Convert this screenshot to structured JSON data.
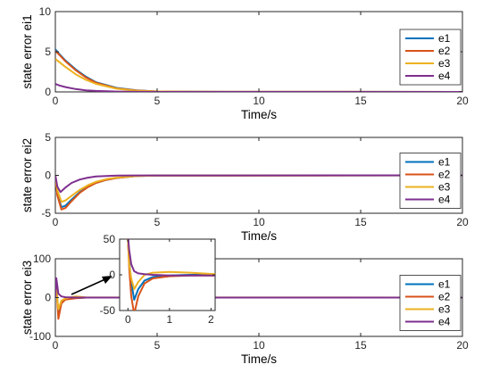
{
  "chart_data": [
    {
      "type": "line",
      "ylabel": "state error ei1",
      "xlabel": "Time/s",
      "xlim": [
        0,
        20
      ],
      "ylim": [
        0,
        10
      ],
      "xticks": [
        0,
        5,
        10,
        15,
        20
      ],
      "yticks": [
        0,
        5,
        10
      ],
      "grid": false,
      "legend_position": "right",
      "series": [
        {
          "name": "e1",
          "color": "#0072BD",
          "x": [
            0,
            0.2,
            0.5,
            1,
            1.5,
            2,
            3,
            4,
            5,
            6,
            20
          ],
          "y": [
            5.3,
            4.7,
            3.9,
            2.8,
            1.9,
            1.2,
            0.5,
            0.2,
            0.06,
            0.02,
            0
          ]
        },
        {
          "name": "e2",
          "color": "#D95319",
          "x": [
            0,
            0.2,
            0.5,
            1,
            1.5,
            2,
            3,
            4,
            5,
            6,
            20
          ],
          "y": [
            5.1,
            4.6,
            3.8,
            2.7,
            1.8,
            1.15,
            0.45,
            0.18,
            0.05,
            0.02,
            0
          ]
        },
        {
          "name": "e3",
          "color": "#EDB120",
          "x": [
            0,
            0.2,
            0.5,
            1,
            1.5,
            2,
            3,
            4,
            5,
            6,
            20
          ],
          "y": [
            4.1,
            3.7,
            3.1,
            2.2,
            1.5,
            1.0,
            0.4,
            0.15,
            0.05,
            0.02,
            0
          ]
        },
        {
          "name": "e4",
          "color": "#7E2F8E",
          "x": [
            0,
            0.2,
            0.5,
            1,
            1.5,
            2,
            3,
            4,
            5,
            20
          ],
          "y": [
            1.0,
            0.8,
            0.6,
            0.35,
            0.2,
            0.12,
            0.04,
            0.01,
            0,
            0
          ]
        }
      ]
    },
    {
      "type": "line",
      "ylabel": "state error ei2",
      "xlabel": "Time/s",
      "xlim": [
        0,
        20
      ],
      "ylim": [
        -5,
        5
      ],
      "xticks": [
        0,
        5,
        10,
        15,
        20
      ],
      "yticks": [
        -5,
        0,
        5
      ],
      "grid": false,
      "legend_position": "right",
      "series": [
        {
          "name": "e1",
          "color": "#0072BD",
          "x": [
            0,
            0.1,
            0.3,
            0.5,
            0.8,
            1.2,
            1.6,
            2,
            2.5,
            3,
            4,
            5,
            20
          ],
          "y": [
            0,
            -2.5,
            -4.2,
            -4.0,
            -3.2,
            -2.2,
            -1.5,
            -1.0,
            -0.6,
            -0.35,
            -0.1,
            -0.03,
            0
          ]
        },
        {
          "name": "e2",
          "color": "#D95319",
          "x": [
            0,
            0.1,
            0.3,
            0.5,
            0.8,
            1.2,
            1.6,
            2,
            2.5,
            3,
            4,
            5,
            20
          ],
          "y": [
            0,
            -2.7,
            -4.5,
            -4.3,
            -3.4,
            -2.3,
            -1.55,
            -1.0,
            -0.6,
            -0.35,
            -0.1,
            -0.03,
            0
          ]
        },
        {
          "name": "e3",
          "color": "#EDB120",
          "x": [
            0,
            0.1,
            0.3,
            0.5,
            0.8,
            1.2,
            1.6,
            2,
            2.5,
            3,
            4,
            5,
            20
          ],
          "y": [
            0,
            -2.0,
            -3.5,
            -3.3,
            -2.7,
            -1.9,
            -1.3,
            -0.85,
            -0.5,
            -0.3,
            -0.1,
            -0.03,
            0
          ]
        },
        {
          "name": "e4",
          "color": "#7E2F8E",
          "x": [
            0,
            0.1,
            0.25,
            0.5,
            0.8,
            1.2,
            1.6,
            2,
            3,
            4,
            20
          ],
          "y": [
            0,
            -1.5,
            -2.2,
            -1.6,
            -1.0,
            -0.55,
            -0.3,
            -0.15,
            -0.04,
            -0.01,
            0
          ]
        }
      ]
    },
    {
      "type": "line",
      "ylabel": "state error ei3",
      "xlabel": "Time/s",
      "xlim": [
        0,
        20
      ],
      "ylim": [
        -100,
        100
      ],
      "xticks": [
        0,
        5,
        10,
        15,
        20
      ],
      "yticks": [
        -100,
        0,
        100
      ],
      "grid": false,
      "legend_position": "right",
      "series": [
        {
          "name": "e1",
          "color": "#0072BD",
          "x": [
            0,
            0.05,
            0.15,
            0.3,
            0.5,
            1,
            1.5,
            20
          ],
          "y": [
            0,
            25,
            -40,
            -10,
            -3,
            -1,
            0,
            0
          ]
        },
        {
          "name": "e2",
          "color": "#D95319",
          "x": [
            0,
            0.05,
            0.15,
            0.3,
            0.5,
            1,
            1.5,
            20
          ],
          "y": [
            0,
            30,
            -55,
            -15,
            -5,
            -1.5,
            0,
            0
          ]
        },
        {
          "name": "e3",
          "color": "#EDB120",
          "x": [
            0,
            0.05,
            0.15,
            0.3,
            0.5,
            1,
            1.5,
            20
          ],
          "y": [
            0,
            20,
            -30,
            -8,
            -2,
            3,
            0.5,
            0
          ]
        },
        {
          "name": "e4",
          "color": "#7E2F8E",
          "x": [
            0,
            0.05,
            0.15,
            0.3,
            0.5,
            1,
            1.5,
            20
          ],
          "y": [
            0,
            50,
            10,
            3,
            1,
            0,
            0,
            0
          ]
        }
      ],
      "inset": {
        "xlim": [
          -0.2,
          2.1
        ],
        "ylim": [
          -50,
          50
        ],
        "xticks": [
          0,
          1,
          2
        ],
        "yticks": [
          -50,
          0,
          50
        ],
        "series": [
          {
            "name": "e1",
            "color": "#0072BD",
            "x": [
              0,
              0.03,
              0.08,
              0.15,
              0.25,
              0.4,
              0.6,
              1,
              1.5,
              2.1
            ],
            "y": [
              50,
              20,
              -10,
              -35,
              -20,
              -8,
              -3,
              -1,
              0,
              0
            ]
          },
          {
            "name": "e2",
            "color": "#D95319",
            "x": [
              0,
              0.03,
              0.08,
              0.15,
              0.25,
              0.4,
              0.6,
              1,
              1.5,
              2.1
            ],
            "y": [
              50,
              10,
              -30,
              -55,
              -30,
              -12,
              -5,
              -2,
              -1,
              -1
            ]
          },
          {
            "name": "e3",
            "color": "#EDB120",
            "x": [
              0,
              0.03,
              0.08,
              0.15,
              0.25,
              0.4,
              0.6,
              1,
              1.5,
              2.1
            ],
            "y": [
              50,
              15,
              -5,
              -20,
              -10,
              0,
              3,
              4,
              3,
              1
            ]
          },
          {
            "name": "e4",
            "color": "#7E2F8E",
            "x": [
              0,
              0.03,
              0.08,
              0.15,
              0.25,
              0.4,
              0.6,
              1,
              1.5,
              2.1
            ],
            "y": [
              55,
              35,
              15,
              5,
              2,
              1,
              0,
              -1,
              -1,
              -1
            ]
          }
        ]
      }
    }
  ]
}
